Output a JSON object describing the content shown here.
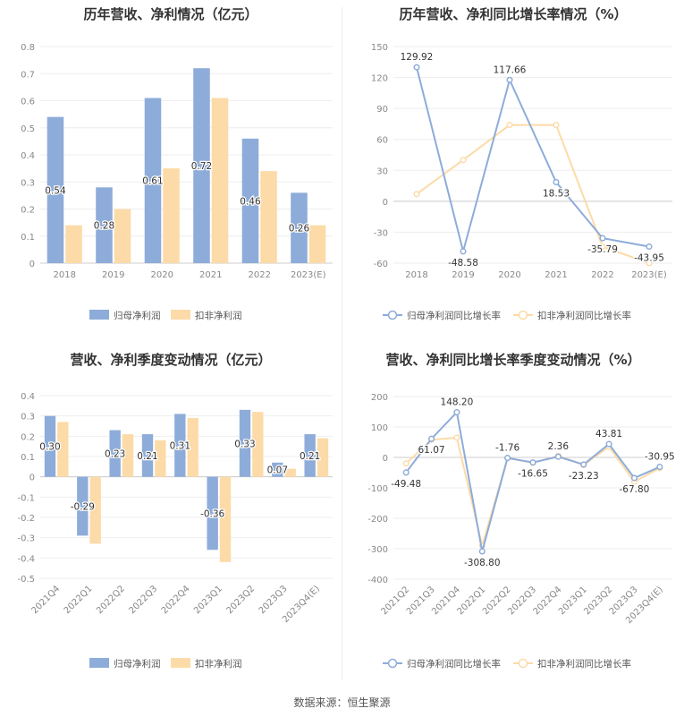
{
  "chart_data": [
    {
      "id": "annual_profit",
      "type": "bar",
      "title": "历年营收、净利情况（亿元）",
      "categories": [
        "2018",
        "2019",
        "2020",
        "2021",
        "2022",
        "2023(E)"
      ],
      "series": [
        {
          "name": "归母净利润",
          "values": [
            0.54,
            0.28,
            0.61,
            0.72,
            0.46,
            0.26
          ],
          "color": "#8eacd9",
          "labels": [
            "0.54",
            "0.28",
            "0.61",
            "0.72",
            "0.46",
            "0.26"
          ]
        },
        {
          "name": "扣非净利润",
          "values": [
            0.14,
            0.2,
            0.35,
            0.61,
            0.34,
            0.14
          ],
          "color": "#fcdba8"
        }
      ],
      "ylim": [
        0,
        0.8
      ],
      "yticks": [
        0,
        0.1,
        0.2,
        0.3,
        0.4,
        0.5,
        0.6,
        0.7,
        0.8
      ],
      "ytick_labels": [
        "0",
        "0.1",
        "0.2",
        "0.3",
        "0.4",
        "0.5",
        "0.6",
        "0.7",
        "0.8"
      ],
      "grid": true,
      "legend": "bottom"
    },
    {
      "id": "annual_growth",
      "type": "line",
      "title": "历年营收、净利同比增长率情况（%）",
      "categories": [
        "2018",
        "2019",
        "2020",
        "2021",
        "2022",
        "2023(E)"
      ],
      "series": [
        {
          "name": "归母净利润同比增长率",
          "values": [
            129.92,
            -48.58,
            117.66,
            18.53,
            -35.79,
            -43.95
          ],
          "color": "#8eacd9",
          "labels": [
            "129.92",
            "-48.58",
            "117.66",
            "18.53",
            "-35.79",
            "-43.95"
          ]
        },
        {
          "name": "扣非净利润同比增长率",
          "values": [
            7,
            40,
            74,
            74,
            -44,
            -60
          ],
          "color": "#fcdba8"
        }
      ],
      "ylim": [
        -60,
        150
      ],
      "yticks": [
        -60,
        -30,
        0,
        30,
        60,
        90,
        120,
        150
      ],
      "ytick_labels": [
        "-60",
        "-30",
        "0",
        "30",
        "60",
        "90",
        "120",
        "150"
      ],
      "grid": true,
      "legend": "bottom"
    },
    {
      "id": "quarterly_profit",
      "type": "bar",
      "title": "营收、净利季度变动情况（亿元）",
      "categories": [
        "2021Q4",
        "2022Q1",
        "2022Q2",
        "2022Q3",
        "2022Q4",
        "2023Q1",
        "2023Q2",
        "2023Q3",
        "2023Q4(E)"
      ],
      "series": [
        {
          "name": "归母净利润",
          "values": [
            0.3,
            -0.29,
            0.23,
            0.21,
            0.31,
            -0.36,
            0.33,
            0.07,
            0.21
          ],
          "color": "#8eacd9",
          "labels": [
            "0.30",
            "-0.29",
            "0.23",
            "0.21",
            "0.31",
            "-0.36",
            "0.33",
            "0.07",
            "0.21"
          ]
        },
        {
          "name": "扣非净利润",
          "values": [
            0.27,
            -0.33,
            0.21,
            0.18,
            0.29,
            -0.42,
            0.32,
            0.04,
            0.19
          ],
          "color": "#fcdba8"
        }
      ],
      "ylim": [
        -0.5,
        0.4
      ],
      "yticks": [
        -0.5,
        -0.4,
        -0.3,
        -0.2,
        -0.1,
        0,
        0.1,
        0.2,
        0.3,
        0.4
      ],
      "ytick_labels": [
        "-0.5",
        "-0.4",
        "-0.3",
        "-0.2",
        "-0.1",
        "0",
        "0.1",
        "0.2",
        "0.3",
        "0.4"
      ],
      "grid": true,
      "legend": "bottom"
    },
    {
      "id": "quarterly_growth",
      "type": "line",
      "title": "营收、净利同比增长率季度变动情况（%）",
      "categories": [
        "2021Q2",
        "2021Q3",
        "2021Q4",
        "2022Q1",
        "2022Q2",
        "2022Q3",
        "2022Q4",
        "2023Q1",
        "2023Q2",
        "2023Q3",
        "2023Q4(E)"
      ],
      "series": [
        {
          "name": "归母净利润同比增长率",
          "values": [
            -49.48,
            61.07,
            148.2,
            -308.8,
            -1.76,
            -16.65,
            2.36,
            -23.23,
            43.81,
            -67.8,
            -30.95
          ],
          "color": "#8eacd9",
          "labels": [
            "-49.48",
            "61.07",
            "148.20",
            "-308.80",
            "-1.76",
            "-16.65",
            "2.36",
            "-23.23",
            "43.81",
            "-67.80",
            "-30.95"
          ]
        },
        {
          "name": "扣非净利润同比增长率",
          "values": [
            -20,
            58,
            65,
            -290,
            -2,
            -18,
            5,
            -25,
            35,
            -80,
            -35
          ],
          "color": "#fcdba8"
        }
      ],
      "ylim": [
        -400,
        200
      ],
      "yticks": [
        -400,
        -300,
        -200,
        -100,
        0,
        100,
        200
      ],
      "ytick_labels": [
        "-400",
        "-300",
        "-200",
        "-100",
        "0",
        "100",
        "200"
      ],
      "grid": true,
      "legend": "bottom"
    }
  ],
  "footer": {
    "text": "数据来源：恒生聚源"
  },
  "colors": {
    "axis": "#cccccc",
    "grid": "#eeeeee",
    "tick_text": "#888888",
    "label_text": "#333333"
  }
}
